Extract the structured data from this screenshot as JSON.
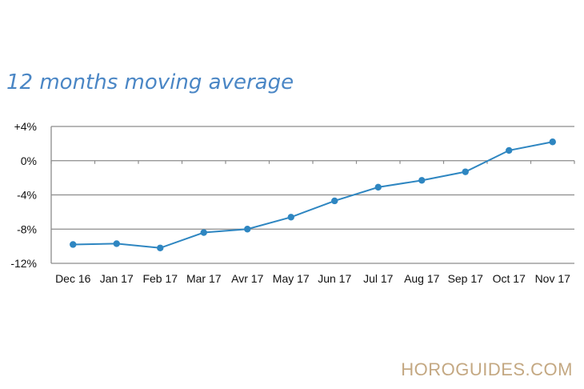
{
  "chart_data": {
    "type": "line",
    "title": "12 months moving average",
    "xlabel": "",
    "ylabel": "",
    "categories": [
      "Dec 16",
      "Jan 17",
      "Feb 17",
      "Mar 17",
      "Avr 17",
      "May 17",
      "Jun 17",
      "Jul 17",
      "Aug 17",
      "Sep 17",
      "Oct 17",
      "Nov 17"
    ],
    "series": [
      {
        "values": [
          -9.8,
          -9.7,
          -10.2,
          -8.4,
          -8.0,
          -6.6,
          -4.7,
          -3.1,
          -2.3,
          -1.3,
          1.2,
          2.2
        ]
      }
    ],
    "ylim": [
      -12,
      4
    ],
    "yticks": [
      4,
      0,
      -4,
      -8,
      -12
    ],
    "ytick_labels": [
      "+4%",
      "0%",
      "-4%",
      "-8%",
      "-12%"
    ],
    "grid": true,
    "legend": "none",
    "colors": {
      "line": "#2e86c1",
      "grid": "#8c8c8c",
      "title": "#4a86c5"
    }
  },
  "watermark": "HOROGUIDES.COM"
}
